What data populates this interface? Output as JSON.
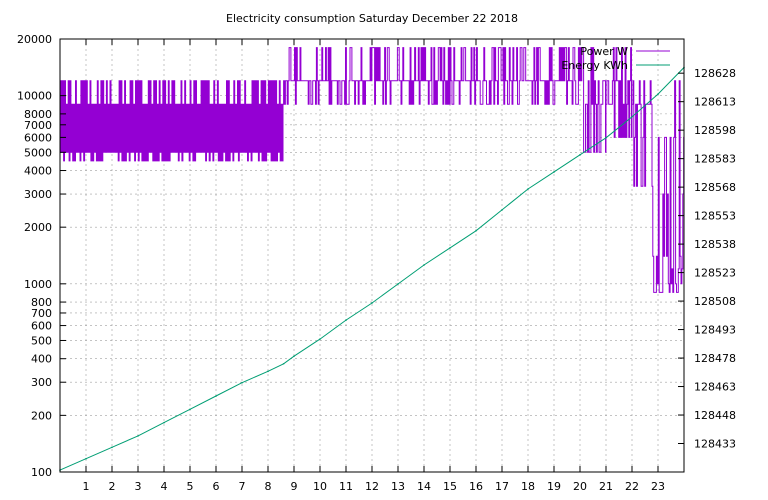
{
  "chart_data": {
    "type": "line",
    "title": "Electricity consumption Saturday December 22 2018",
    "xlabel": "",
    "ylabel": "",
    "x_range": [
      0,
      24
    ],
    "x_ticks": [
      1,
      2,
      3,
      4,
      5,
      6,
      7,
      8,
      9,
      10,
      11,
      12,
      13,
      14,
      15,
      16,
      17,
      18,
      19,
      20,
      21,
      22,
      23
    ],
    "y_left": {
      "scale": "log",
      "range": [
        100,
        20000
      ],
      "ticks": [
        100,
        200,
        300,
        400,
        500,
        600,
        700,
        800,
        1000,
        2000,
        3000,
        4000,
        5000,
        6000,
        7000,
        8000,
        10000,
        20000
      ]
    },
    "y_right": {
      "scale": "linear",
      "range": [
        128418,
        128646
      ],
      "ticks": [
        128433,
        128448,
        128463,
        128478,
        128493,
        128508,
        128523,
        128538,
        128553,
        128568,
        128583,
        128598,
        128613,
        128628
      ]
    },
    "grid": true,
    "legend_position": "top-right",
    "series": [
      {
        "name": "Power W",
        "axis": "left",
        "color": "#9400d3",
        "segments": [
          {
            "from": 0.0,
            "to": 8.6,
            "levels": [
              4500,
              5000,
              9000,
              12000
            ],
            "pattern": "cycling"
          },
          {
            "from": 8.6,
            "to": 20.0,
            "levels": [
              9000,
              12000,
              18000
            ],
            "pattern": "high"
          },
          {
            "from": 20.0,
            "to": 21.0,
            "levels": [
              5000,
              9000,
              12000,
              18000
            ],
            "pattern": "mixed"
          },
          {
            "from": 21.0,
            "to": 22.0,
            "levels": [
              6000,
              9000,
              12000,
              18000
            ],
            "pattern": "mixed"
          },
          {
            "from": 22.0,
            "to": 22.8,
            "levels": [
              3300,
              6000,
              9000,
              12000
            ],
            "pattern": "mixed"
          },
          {
            "from": 22.8,
            "to": 24.0,
            "levels": [
              900,
              1000,
              1200,
              1400,
              3000,
              6000,
              12000
            ],
            "pattern": "dips"
          }
        ]
      },
      {
        "name": "Energy KWh",
        "axis": "right",
        "color": "#009e73",
        "x": [
          0,
          1,
          2,
          3,
          4,
          5,
          6,
          7,
          8,
          8.6,
          9,
          10,
          11,
          12,
          13,
          14,
          15,
          16,
          17,
          18,
          19,
          20,
          21,
          22,
          23,
          24
        ],
        "y": [
          128419,
          128425,
          128431,
          128437,
          128444,
          128451,
          128458,
          128465,
          128471,
          128475,
          128479,
          128488,
          128498,
          128507,
          128517,
          128527,
          128536,
          128545,
          128556,
          128567,
          128576,
          128585,
          128594,
          128605,
          128617,
          128631
        ]
      }
    ]
  }
}
